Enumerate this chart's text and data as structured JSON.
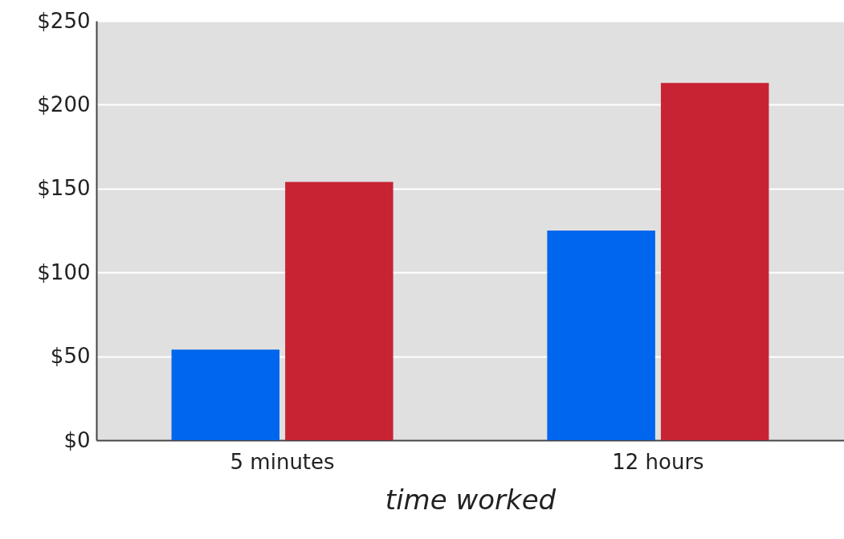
{
  "chart_data": {
    "type": "bar",
    "xlabel": "time worked",
    "categories": [
      "5 minutes",
      "12 hours"
    ],
    "series": [
      {
        "color": "#0066ee",
        "values": [
          54,
          125
        ]
      },
      {
        "color": "#c82333",
        "values": [
          154,
          213
        ]
      }
    ],
    "ylim": [
      0,
      250
    ],
    "yticks": [
      {
        "value": 0,
        "label": "$0"
      },
      {
        "value": 50,
        "label": "$50"
      },
      {
        "value": 100,
        "label": "$100"
      },
      {
        "value": 150,
        "label": "$150"
      },
      {
        "value": 200,
        "label": "$200"
      },
      {
        "value": 250,
        "label": "$250"
      }
    ],
    "grid": "y",
    "legend": false
  }
}
